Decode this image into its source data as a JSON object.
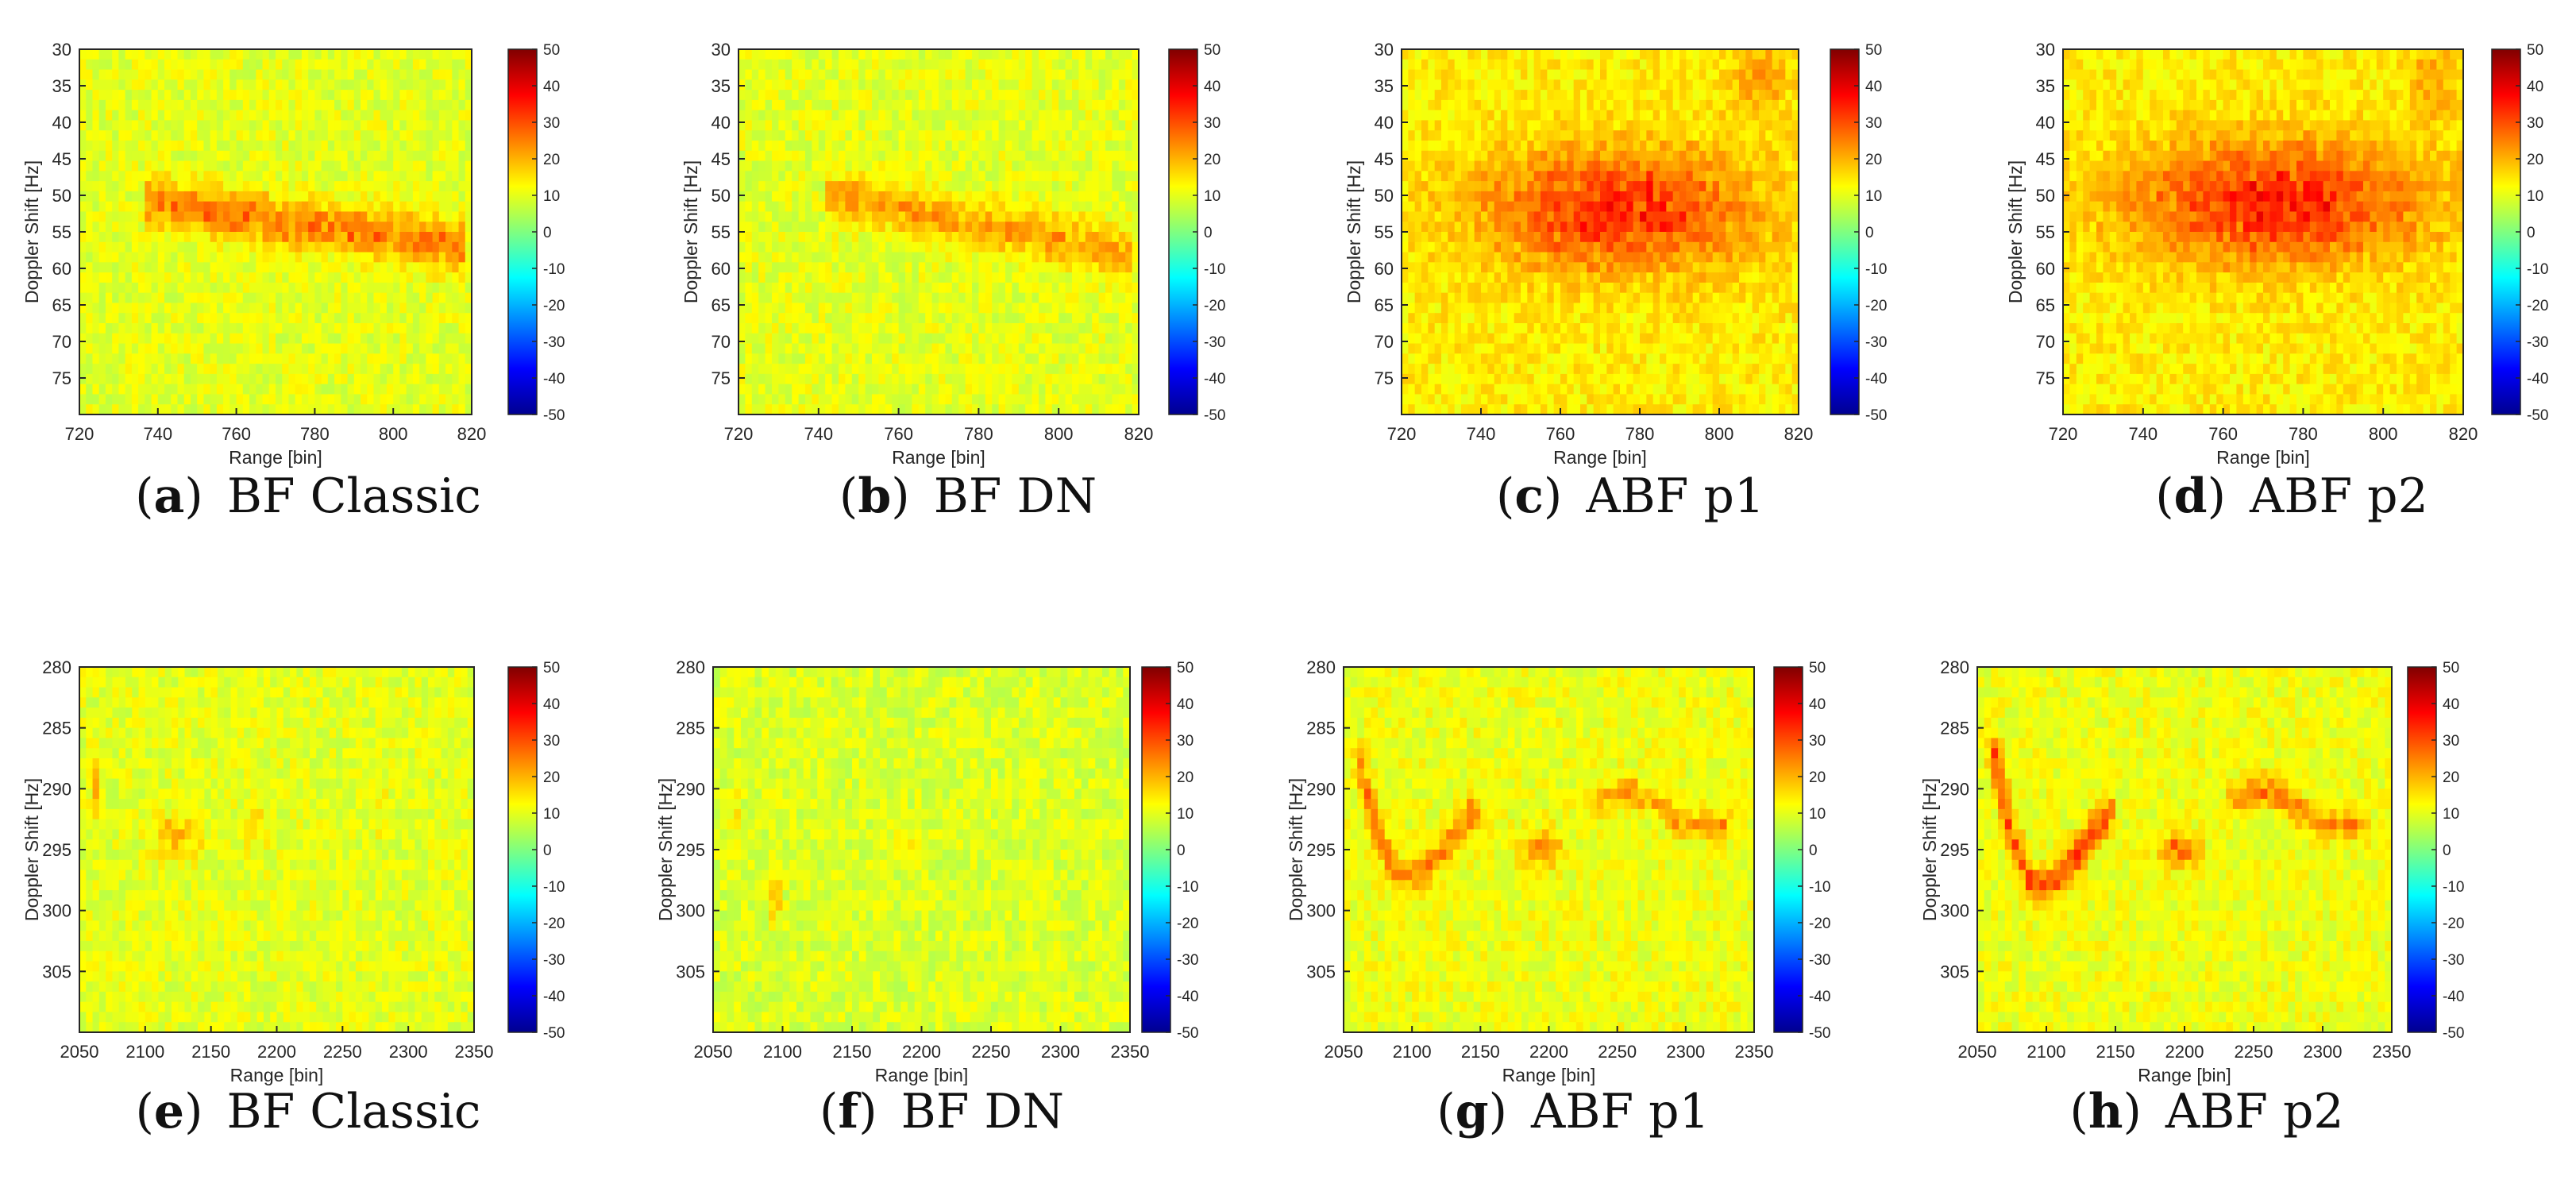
{
  "figure": {
    "colormap": [
      "#00008f",
      "#0000ff",
      "#00ffff",
      "#ffff00",
      "#ff0000",
      "#800000"
    ],
    "heatmap_background": "#d9f03c",
    "axis_color": "#262626"
  },
  "chart_data": [
    {
      "id": "a",
      "type": "heatmap",
      "caption_label": "a",
      "caption_text": "BF Classic",
      "xlabel": "Range [bin]",
      "ylabel": "Doppler Shift [Hz]",
      "xlim": [
        720,
        820
      ],
      "ylim": [
        30,
        80
      ],
      "xticks": [
        "720",
        "740",
        "760",
        "780",
        "800",
        "820"
      ],
      "yticks": [
        "30",
        "35",
        "40",
        "45",
        "50",
        "55",
        "60",
        "65",
        "70",
        "75"
      ],
      "clim": [
        -50,
        50
      ],
      "cticks": [
        "50",
        "40",
        "30",
        "20",
        "10",
        "0",
        "-10",
        "-20",
        "-30",
        "-40",
        "-50"
      ],
      "noise_level": 10,
      "features": [
        {
          "shape": "band",
          "x": [
            737,
            818
          ],
          "y_start": 51,
          "y_end": 57,
          "thickness": 4,
          "peak": 26
        }
      ]
    },
    {
      "id": "b",
      "type": "heatmap",
      "caption_label": "b",
      "caption_text": "BF DN",
      "xlabel": "Range [bin]",
      "ylabel": "Doppler Shift [Hz]",
      "xlim": [
        720,
        820
      ],
      "ylim": [
        30,
        80
      ],
      "xticks": [
        "720",
        "740",
        "760",
        "780",
        "800",
        "820"
      ],
      "yticks": [
        "30",
        "35",
        "40",
        "45",
        "50",
        "55",
        "60",
        "65",
        "70",
        "75"
      ],
      "clim": [
        -50,
        50
      ],
      "cticks": [
        "50",
        "40",
        "30",
        "20",
        "10",
        "0",
        "-10",
        "-20",
        "-30",
        "-40",
        "-50"
      ],
      "noise_level": 10,
      "features": [
        {
          "shape": "band",
          "x": [
            742,
            818
          ],
          "y_start": 50,
          "y_end": 58,
          "thickness": 4,
          "peak": 22
        }
      ]
    },
    {
      "id": "c",
      "type": "heatmap",
      "caption_label": "c",
      "caption_text": "ABF p1",
      "xlabel": "Range [bin]",
      "ylabel": "Doppler Shift [Hz]",
      "xlim": [
        720,
        820
      ],
      "ylim": [
        30,
        80
      ],
      "xticks": [
        "720",
        "740",
        "760",
        "780",
        "800",
        "820"
      ],
      "yticks": [
        "30",
        "35",
        "40",
        "45",
        "50",
        "55",
        "60",
        "65",
        "70",
        "75"
      ],
      "clim": [
        -50,
        50
      ],
      "cticks": [
        "50",
        "40",
        "30",
        "20",
        "10",
        "0",
        "-10",
        "-20",
        "-30",
        "-40",
        "-50"
      ],
      "noise_level": 14,
      "features": [
        {
          "shape": "blob",
          "cx": 775,
          "cy": 52,
          "rx": 38,
          "ry": 9,
          "peak": 34
        },
        {
          "shape": "blob",
          "cx": 810,
          "cy": 34,
          "rx": 8,
          "ry": 6,
          "peak": 22
        }
      ]
    },
    {
      "id": "d",
      "type": "heatmap",
      "caption_label": "d",
      "caption_text": "ABF p2",
      "xlabel": "Range [bin]",
      "ylabel": "Doppler Shift [Hz]",
      "xlim": [
        720,
        820
      ],
      "ylim": [
        30,
        80
      ],
      "xticks": [
        "720",
        "740",
        "760",
        "780",
        "800",
        "820"
      ],
      "yticks": [
        "30",
        "35",
        "40",
        "45",
        "50",
        "55",
        "60",
        "65",
        "70",
        "75"
      ],
      "clim": [
        -50,
        50
      ],
      "cticks": [
        "50",
        "40",
        "30",
        "20",
        "10",
        "0",
        "-10",
        "-20",
        "-30",
        "-40",
        "-50"
      ],
      "noise_level": 14,
      "features": [
        {
          "shape": "blob",
          "cx": 773,
          "cy": 51,
          "rx": 40,
          "ry": 9,
          "peak": 35
        },
        {
          "shape": "blob",
          "cx": 812,
          "cy": 34,
          "rx": 7,
          "ry": 6,
          "peak": 22
        }
      ]
    },
    {
      "id": "e",
      "type": "heatmap",
      "caption_label": "e",
      "caption_text": "BF Classic",
      "xlabel": "Range [bin]",
      "ylabel": "Doppler Shift [Hz]",
      "xlim": [
        2050,
        2350
      ],
      "ylim": [
        280,
        310
      ],
      "xticks": [
        "2050",
        "2100",
        "2150",
        "2200",
        "2250",
        "2300",
        "2350"
      ],
      "yticks": [
        "280",
        "285",
        "290",
        "295",
        "300",
        "305"
      ],
      "clim": [
        -50,
        50
      ],
      "cticks": [
        "50",
        "40",
        "30",
        "20",
        "10",
        "0",
        "-10",
        "-20",
        "-30",
        "-40",
        "-50"
      ],
      "noise_level": 10,
      "features": [
        {
          "shape": "blob",
          "cx": 2062,
          "cy": 290,
          "rx": 4,
          "ry": 3,
          "peak": 20
        },
        {
          "shape": "blob",
          "cx": 2125,
          "cy": 294,
          "rx": 18,
          "ry": 2,
          "peak": 20
        },
        {
          "shape": "blob",
          "cx": 2185,
          "cy": 293,
          "rx": 12,
          "ry": 2,
          "peak": 16
        },
        {
          "shape": "blob",
          "cx": 2280,
          "cy": 292,
          "rx": 6,
          "ry": 2,
          "peak": 14
        }
      ]
    },
    {
      "id": "f",
      "type": "heatmap",
      "caption_label": "f",
      "caption_text": "BF DN",
      "xlabel": "Range [bin]",
      "ylabel": "Doppler Shift [Hz]",
      "xlim": [
        2050,
        2350
      ],
      "ylim": [
        280,
        310
      ],
      "xticks": [
        "2050",
        "2100",
        "2150",
        "2200",
        "2250",
        "2300",
        "2350"
      ],
      "yticks": [
        "280",
        "285",
        "290",
        "295",
        "300",
        "305"
      ],
      "clim": [
        -50,
        50
      ],
      "cticks": [
        "50",
        "40",
        "30",
        "20",
        "10",
        "0",
        "-10",
        "-20",
        "-30",
        "-40",
        "-50"
      ],
      "noise_level": 9,
      "features": [
        {
          "shape": "blob",
          "cx": 2066,
          "cy": 292,
          "rx": 3,
          "ry": 2,
          "peak": 16
        },
        {
          "shape": "blob",
          "cx": 2095,
          "cy": 299,
          "rx": 4,
          "ry": 2,
          "peak": 22
        },
        {
          "shape": "blob",
          "cx": 2190,
          "cy": 294,
          "rx": 7,
          "ry": 1,
          "peak": 15
        }
      ]
    },
    {
      "id": "g",
      "type": "heatmap",
      "caption_label": "g",
      "caption_text": "ABF p1",
      "xlabel": "Range [bin]",
      "ylabel": "Doppler Shift [Hz]",
      "xlim": [
        2050,
        2350
      ],
      "ylim": [
        280,
        310
      ],
      "xticks": [
        "2050",
        "2100",
        "2150",
        "2200",
        "2250",
        "2300",
        "2350"
      ],
      "yticks": [
        "280",
        "285",
        "290",
        "295",
        "300",
        "305"
      ],
      "clim": [
        -50,
        50
      ],
      "cticks": [
        "50",
        "40",
        "30",
        "20",
        "10",
        "0",
        "-10",
        "-20",
        "-30",
        "-40",
        "-50"
      ],
      "noise_level": 11,
      "features": [
        {
          "shape": "curve",
          "points": [
            [
              2062,
              288
            ],
            [
              2075,
              294
            ],
            [
              2090,
              297
            ],
            [
              2105,
              297
            ],
            [
              2125,
              295
            ],
            [
              2145,
              292
            ]
          ],
          "thickness": 1.6,
          "peak": 26
        },
        {
          "shape": "blob",
          "cx": 2195,
          "cy": 295,
          "rx": 15,
          "ry": 1.6,
          "peak": 24
        },
        {
          "shape": "curve",
          "points": [
            [
              2235,
              291
            ],
            [
              2260,
              290
            ],
            [
              2300,
              293
            ],
            [
              2330,
              293
            ]
          ],
          "thickness": 1.3,
          "peak": 22
        }
      ]
    },
    {
      "id": "h",
      "type": "heatmap",
      "caption_label": "h",
      "caption_text": "ABF p2",
      "xlabel": "Range [bin]",
      "ylabel": "Doppler Shift [Hz]",
      "xlim": [
        2050,
        2350
      ],
      "ylim": [
        280,
        310
      ],
      "xticks": [
        "2050",
        "2100",
        "2150",
        "2200",
        "2250",
        "2300",
        "2350"
      ],
      "yticks": [
        "280",
        "285",
        "290",
        "295",
        "300",
        "305"
      ],
      "clim": [
        -50,
        50
      ],
      "cticks": [
        "50",
        "40",
        "30",
        "20",
        "10",
        "0",
        "-10",
        "-20",
        "-30",
        "-40",
        "-50"
      ],
      "noise_level": 11,
      "features": [
        {
          "shape": "curve",
          "points": [
            [
              2062,
              287
            ],
            [
              2075,
              294
            ],
            [
              2090,
              298
            ],
            [
              2105,
              298
            ],
            [
              2125,
              295
            ],
            [
              2145,
              292
            ]
          ],
          "thickness": 1.7,
          "peak": 30
        },
        {
          "shape": "blob",
          "cx": 2195,
          "cy": 295,
          "rx": 16,
          "ry": 1.6,
          "peak": 26
        },
        {
          "shape": "curve",
          "points": [
            [
              2235,
              291
            ],
            [
              2260,
              290
            ],
            [
              2300,
              293
            ],
            [
              2330,
              293
            ]
          ],
          "thickness": 1.4,
          "peak": 25
        }
      ]
    }
  ]
}
